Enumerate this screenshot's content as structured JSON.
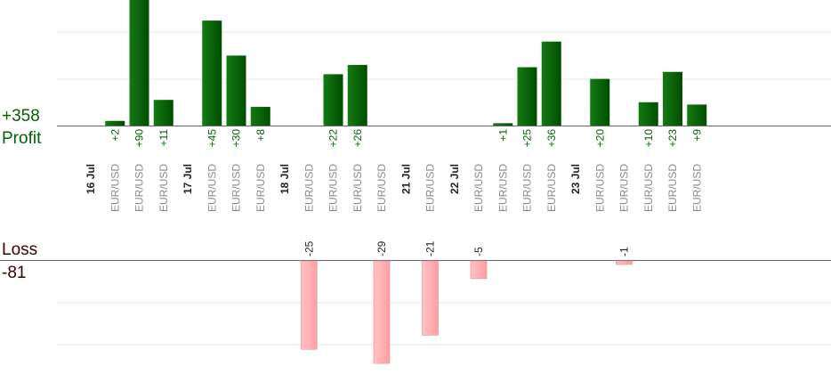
{
  "summary": {
    "profit_total": "+358",
    "profit_label": "Profit",
    "loss_label": "Loss",
    "loss_total": "-81"
  },
  "colors": {
    "profit_bar": "#0b6b0b",
    "profit_bar_dark": "#004d00",
    "profit_text": "#006400",
    "loss_bar": "#ffb6b8",
    "loss_bar_edge": "#e88a8e",
    "date_text": "#222222",
    "pair_text": "#8a8a8a",
    "grid": "#e6e6e6",
    "axis": "#666666"
  },
  "chart_data": {
    "type": "bar",
    "profit_ylim": [
      0,
      56
    ],
    "loss_ylim": [
      -30,
      0
    ],
    "grid": true,
    "slots": [
      {
        "kind": "date",
        "label": "16 Jul"
      },
      {
        "kind": "trade",
        "pair": "EUR/USD",
        "profit": 2,
        "profit_label": "+2"
      },
      {
        "kind": "trade",
        "pair": "EUR/USD",
        "profit": 90,
        "profit_label": "+90"
      },
      {
        "kind": "trade",
        "pair": "EUR/USD",
        "profit": 11,
        "profit_label": "+11"
      },
      {
        "kind": "date",
        "label": "17 Jul"
      },
      {
        "kind": "trade",
        "pair": "EUR/USD",
        "profit": 45,
        "profit_label": "+45"
      },
      {
        "kind": "trade",
        "pair": "EUR/USD",
        "profit": 30,
        "profit_label": "+30"
      },
      {
        "kind": "trade",
        "pair": "EUR/USD",
        "profit": 8,
        "profit_label": "+8"
      },
      {
        "kind": "date",
        "label": "18 Jul"
      },
      {
        "kind": "trade",
        "pair": "EUR/USD",
        "loss": -25,
        "loss_label": "-25"
      },
      {
        "kind": "trade",
        "pair": "EUR/USD",
        "profit": 22,
        "profit_label": "+22"
      },
      {
        "kind": "trade",
        "pair": "EUR/USD",
        "profit": 26,
        "profit_label": "+26"
      },
      {
        "kind": "trade",
        "pair": "EUR/USD",
        "loss": -29,
        "loss_label": "-29"
      },
      {
        "kind": "date",
        "label": "21 Jul"
      },
      {
        "kind": "trade",
        "pair": "EUR/USD",
        "loss": -21,
        "loss_label": "-21"
      },
      {
        "kind": "date",
        "label": "22 Jul"
      },
      {
        "kind": "trade",
        "pair": "EUR/USD",
        "loss": -5,
        "loss_label": "-5"
      },
      {
        "kind": "trade",
        "pair": "EUR/USD",
        "profit": 1,
        "profit_label": "+1"
      },
      {
        "kind": "trade",
        "pair": "EUR/USD",
        "profit": 25,
        "profit_label": "+25"
      },
      {
        "kind": "trade",
        "pair": "EUR/USD",
        "profit": 36,
        "profit_label": "+36"
      },
      {
        "kind": "date",
        "label": "23 Jul"
      },
      {
        "kind": "trade",
        "pair": "EUR/USD",
        "profit": 20,
        "profit_label": "+20"
      },
      {
        "kind": "trade",
        "pair": "EUR/USD",
        "loss": -1,
        "loss_label": "-1"
      },
      {
        "kind": "trade",
        "pair": "EUR/USD",
        "profit": 10,
        "profit_label": "+10"
      },
      {
        "kind": "trade",
        "pair": "EUR/USD",
        "profit": 23,
        "profit_label": "+23"
      },
      {
        "kind": "trade",
        "pair": "EUR/USD",
        "profit": 9,
        "profit_label": "+9"
      }
    ]
  }
}
